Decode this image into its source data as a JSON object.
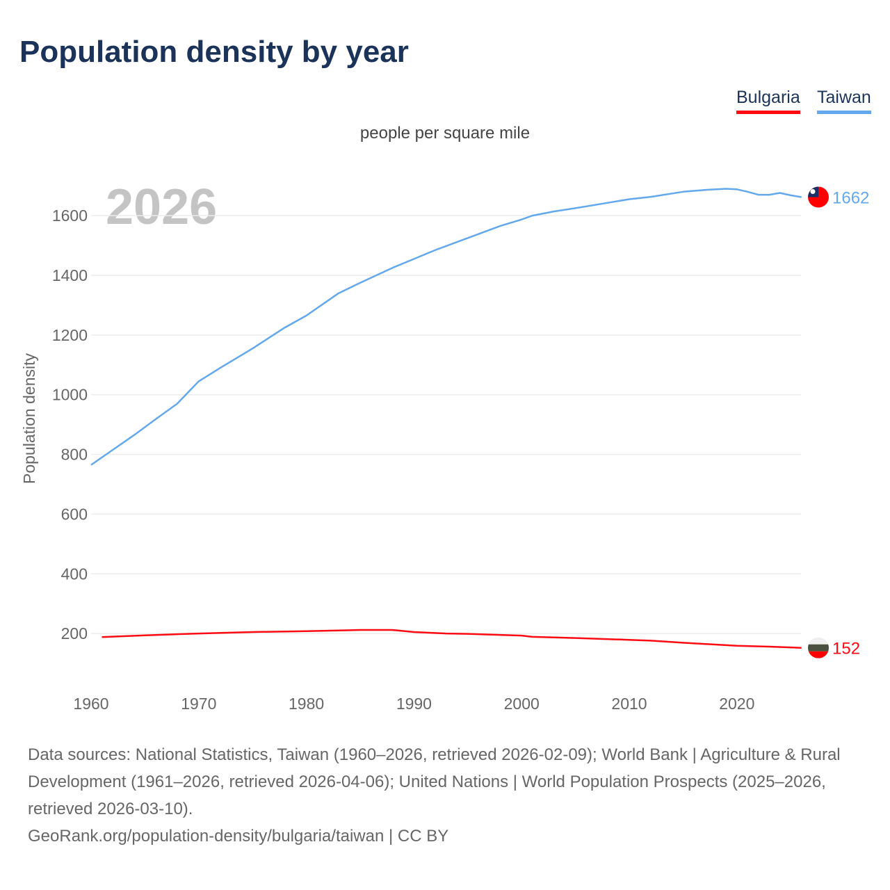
{
  "title": "Population density by year",
  "unit_label": "people per square mile",
  "year_label": "2026",
  "legend": [
    {
      "name": "Bulgaria",
      "color": "#ff0a12"
    },
    {
      "name": "Taiwan",
      "color": "#63a8ec"
    }
  ],
  "footer": {
    "sources": "Data sources: National Statistics, Taiwan (1960–2026, retrieved 2026-02-09); World Bank | Agriculture & Rural Development (1961–2026, retrieved 2026-04-06); United Nations | World Population Prospects (2025–2026, retrieved 2026-03-10).",
    "credit": "GeoRank.org/population-density/bulgaria/taiwan | CC BY"
  },
  "chart_data": {
    "type": "line",
    "title": "Population density by year",
    "xlabel": "",
    "ylabel": "Population density",
    "xlim": [
      1960,
      2026
    ],
    "ylim": [
      0,
      1700
    ],
    "xticks": [
      1960,
      1970,
      1980,
      1990,
      2000,
      2010,
      2020
    ],
    "yticks": [
      200,
      400,
      600,
      800,
      1000,
      1200,
      1400,
      1600
    ],
    "grid": true,
    "legend_position": "top-right",
    "series": [
      {
        "name": "Taiwan",
        "color": "#63a8ec",
        "end_label": "1662",
        "x": [
          1960,
          1962,
          1964,
          1966,
          1968,
          1970,
          1972,
          1975,
          1978,
          1980,
          1983,
          1985,
          1988,
          1990,
          1992,
          1995,
          1998,
          2000,
          2001,
          2003,
          2005,
          2008,
          2010,
          2012,
          2015,
          2017,
          2019,
          2020,
          2021,
          2022,
          2023,
          2024,
          2025,
          2026
        ],
        "y": [
          765,
          815,
          865,
          918,
          970,
          1045,
          1090,
          1155,
          1225,
          1265,
          1340,
          1375,
          1425,
          1455,
          1485,
          1525,
          1565,
          1587,
          1600,
          1614,
          1625,
          1643,
          1655,
          1663,
          1680,
          1686,
          1690,
          1688,
          1680,
          1670,
          1670,
          1676,
          1668,
          1662
        ]
      },
      {
        "name": "Bulgaria",
        "color": "#ff0a12",
        "end_label": "152",
        "x": [
          1961,
          1965,
          1970,
          1975,
          1980,
          1985,
          1988,
          1990,
          1993,
          1995,
          2000,
          2001,
          2005,
          2010,
          2012,
          2015,
          2020,
          2023,
          2026
        ],
        "y": [
          188,
          194,
          200,
          205,
          208,
          212,
          212,
          205,
          200,
          199,
          193,
          189,
          185,
          179,
          176,
          169,
          159,
          156,
          152
        ]
      }
    ]
  }
}
